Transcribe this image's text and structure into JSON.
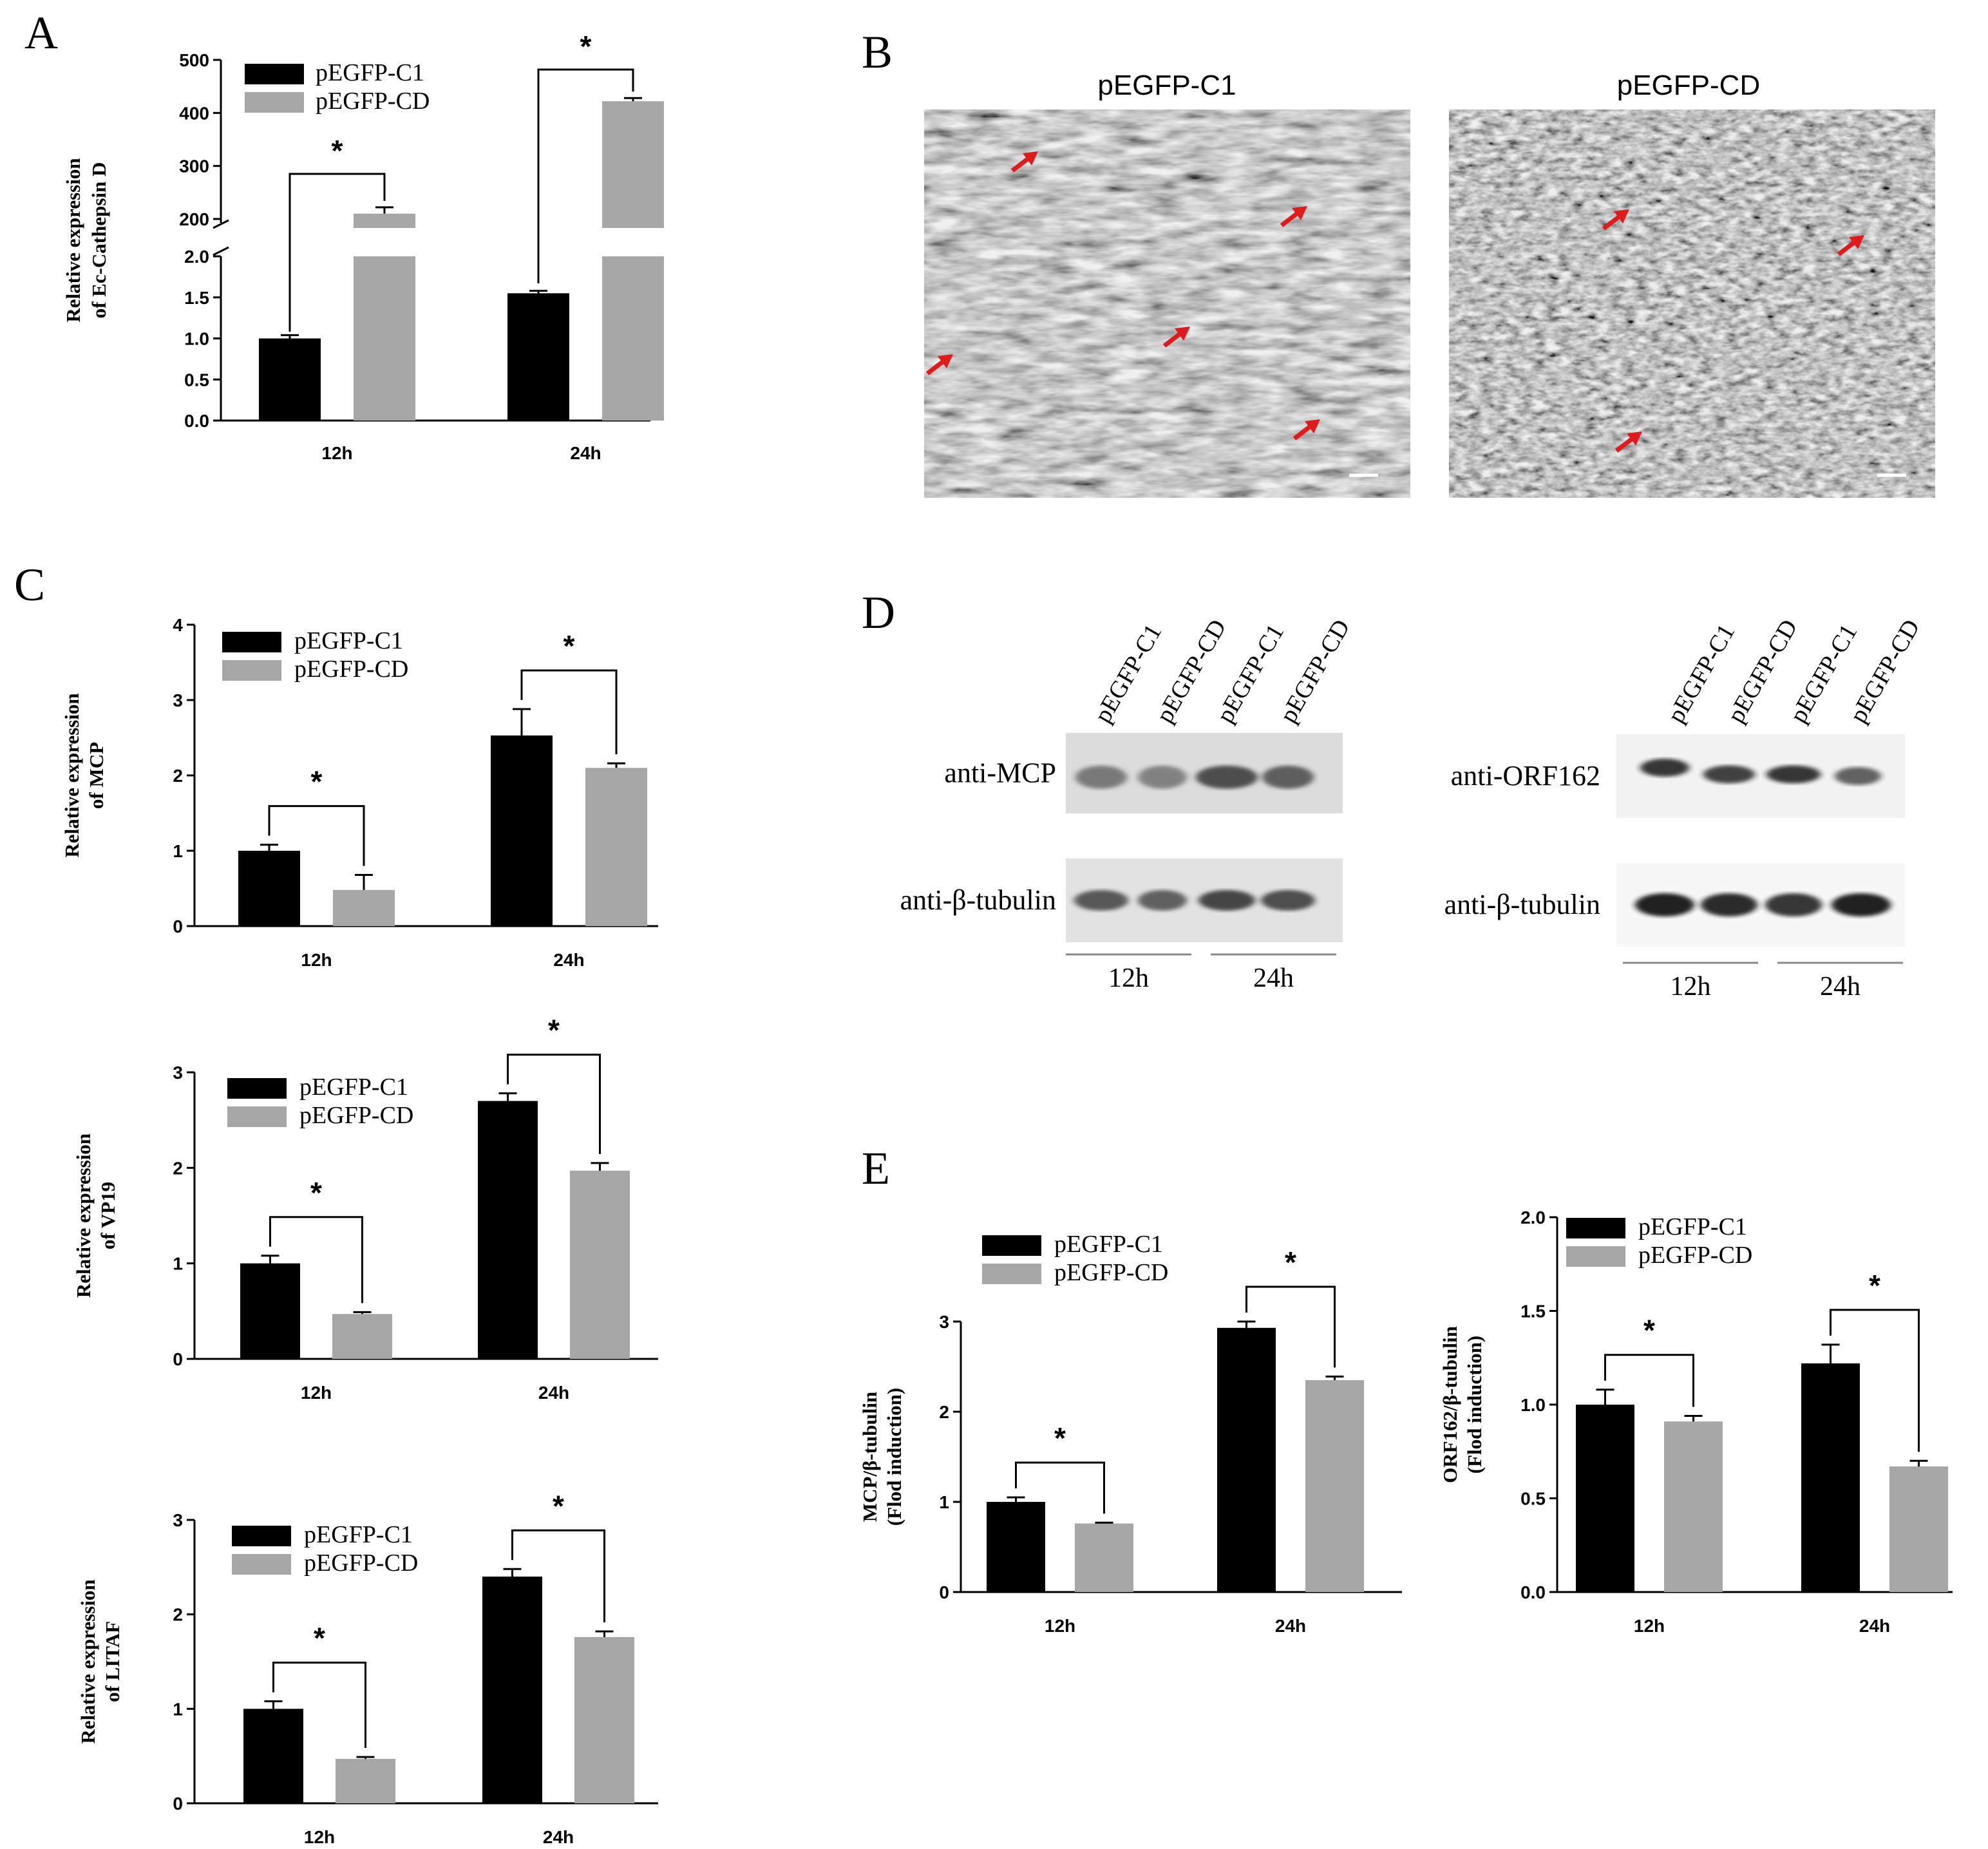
{
  "panels": {
    "A": "A",
    "B": "B",
    "C": "C",
    "D": "D",
    "E": "E"
  },
  "colors": {
    "c1": "#000000",
    "cd": "#a6a6a6",
    "arrow": "#e11b1b"
  },
  "legend": [
    "pEGFP-C1",
    "pEGFP-CD"
  ],
  "charts": {
    "A": {
      "type": "bar",
      "categories": [
        "12h",
        "24h"
      ],
      "ylabel": "Relative expression of Ec-Cathepsin D",
      "break_axis": true,
      "ylim_lower": [
        0,
        2.0
      ],
      "ticks_lower": [
        "0.0",
        "0.5",
        "1.0",
        "1.5",
        "2.0"
      ],
      "ylim_upper": [
        200,
        500
      ],
      "ticks_upper": [
        "200",
        "300",
        "400",
        "500"
      ],
      "series": [
        {
          "name": "pEGFP-C1",
          "values": [
            1.0,
            1.55
          ],
          "errors": [
            0.04,
            0.03
          ]
        },
        {
          "name": "pEGFP-CD",
          "values": [
            210,
            422
          ],
          "errors": [
            12,
            6
          ]
        }
      ],
      "significance": [
        "*",
        "*"
      ]
    },
    "C1": {
      "type": "bar",
      "categories": [
        "12h",
        "24h"
      ],
      "ylabel": "Relative expression of MCP",
      "ylim": [
        0,
        4
      ],
      "ticks": [
        "0",
        "1",
        "2",
        "3",
        "4"
      ],
      "series": [
        {
          "name": "pEGFP-C1",
          "values": [
            1.0,
            2.53
          ],
          "errors": [
            0.08,
            0.35
          ]
        },
        {
          "name": "pEGFP-CD",
          "values": [
            0.48,
            2.1
          ],
          "errors": [
            0.2,
            0.06
          ]
        }
      ],
      "significance": [
        "*",
        "*"
      ]
    },
    "C2": {
      "type": "bar",
      "categories": [
        "12h",
        "24h"
      ],
      "ylabel": "Relative expression of VP19",
      "ylim": [
        0,
        3
      ],
      "ticks": [
        "0",
        "1",
        "2",
        "3"
      ],
      "series": [
        {
          "name": "pEGFP-C1",
          "values": [
            1.0,
            2.7
          ],
          "errors": [
            0.08,
            0.08
          ]
        },
        {
          "name": "pEGFP-CD",
          "values": [
            0.47,
            1.97
          ],
          "errors": [
            0.02,
            0.08
          ]
        }
      ],
      "significance": [
        "*",
        "*"
      ]
    },
    "C3": {
      "type": "bar",
      "categories": [
        "12h",
        "24h"
      ],
      "ylabel": "Relative expression of LITAF",
      "ylim": [
        0,
        3
      ],
      "ticks": [
        "0",
        "1",
        "2",
        "3"
      ],
      "series": [
        {
          "name": "pEGFP-C1",
          "values": [
            1.0,
            2.4
          ],
          "errors": [
            0.08,
            0.08
          ]
        },
        {
          "name": "pEGFP-CD",
          "values": [
            0.47,
            1.76
          ],
          "errors": [
            0.02,
            0.06
          ]
        }
      ],
      "significance": [
        "*",
        "*"
      ]
    },
    "E1": {
      "type": "bar",
      "categories": [
        "12h",
        "24h"
      ],
      "ylabel": "MCP/β-tubulin (Flod induction)",
      "ylim": [
        0,
        3
      ],
      "ticks": [
        "0",
        "1",
        "2",
        "3"
      ],
      "series": [
        {
          "name": "pEGFP-C1",
          "values": [
            1.0,
            2.93
          ],
          "errors": [
            0.05,
            0.07
          ]
        },
        {
          "name": "pEGFP-CD",
          "values": [
            0.76,
            2.35
          ],
          "errors": [
            0.01,
            0.04
          ]
        }
      ],
      "significance": [
        "*",
        "*"
      ]
    },
    "E2": {
      "type": "bar",
      "categories": [
        "12h",
        "24h"
      ],
      "ylabel": "ORF162/β-tubulin (Flod induction)",
      "ylim": [
        0,
        2.0
      ],
      "ticks": [
        "0.0",
        "0.5",
        "1.0",
        "1.5",
        "2.0"
      ],
      "series": [
        {
          "name": "pEGFP-C1",
          "values": [
            1.0,
            1.22
          ],
          "errors": [
            0.08,
            0.1
          ]
        },
        {
          "name": "pEGFP-CD",
          "values": [
            0.91,
            0.67
          ],
          "errors": [
            0.03,
            0.03
          ]
        }
      ],
      "significance": [
        "*",
        "*"
      ]
    }
  },
  "micrographs": {
    "left_title": "pEGFP-C1",
    "right_title": "pEGFP-CD"
  },
  "blots": {
    "lanes": [
      "pEGFP-C1",
      "pEGFP-CD",
      "pEGFP-C1",
      "pEGFP-CD"
    ],
    "times": [
      "12h",
      "24h"
    ],
    "left": {
      "row1": "anti-MCP",
      "row2": "anti-β-tubulin"
    },
    "right": {
      "row1": "anti-ORF162",
      "row2": "anti-β-tubulin"
    }
  }
}
